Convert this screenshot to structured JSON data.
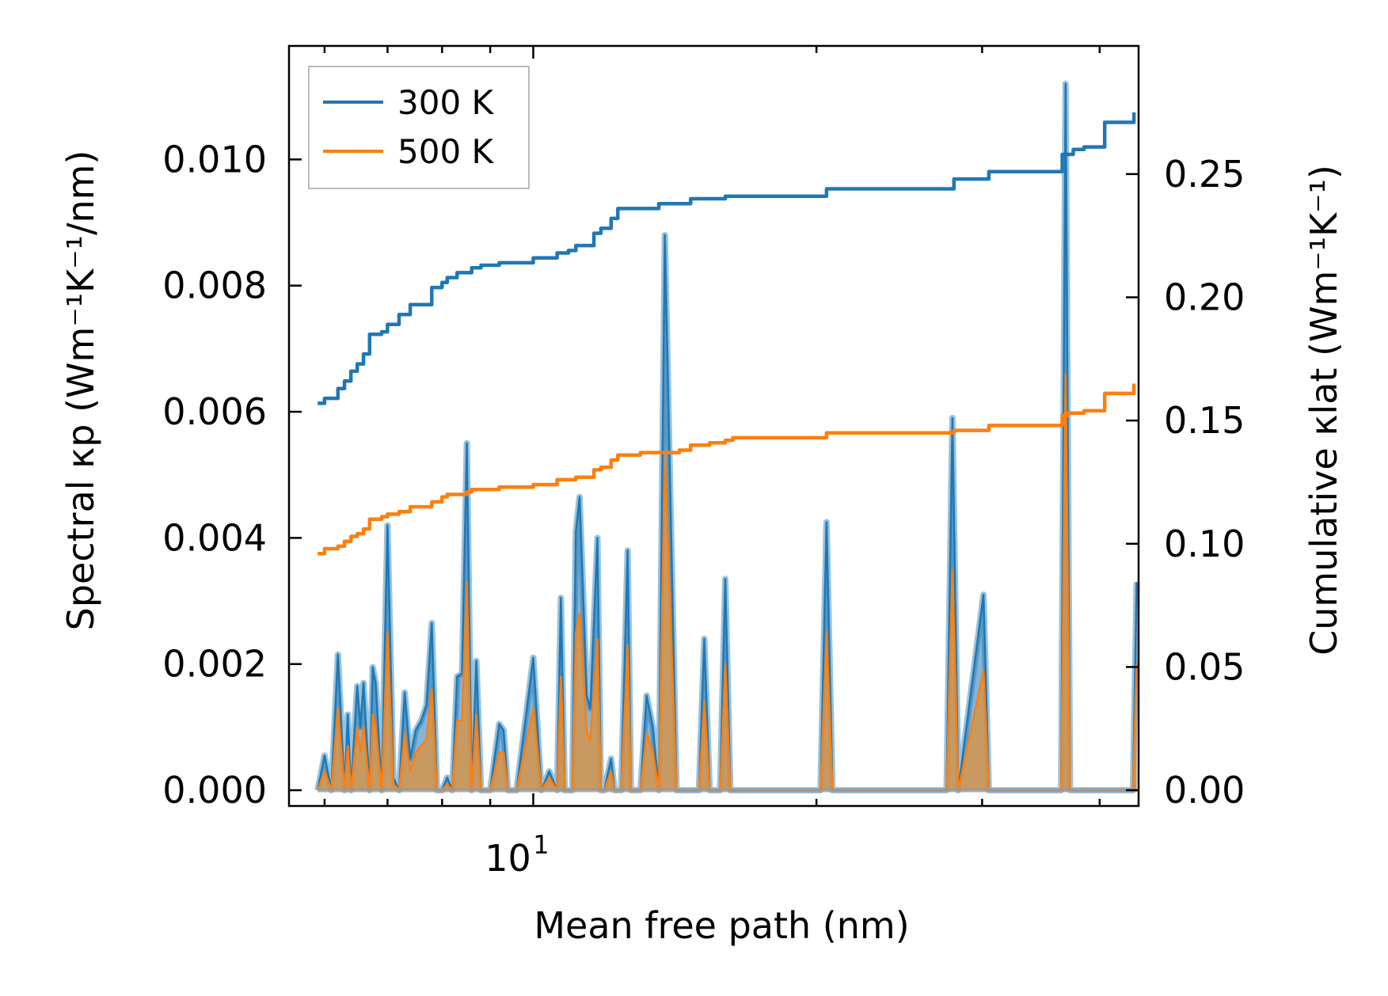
{
  "chart_data": {
    "type": "line",
    "title": "",
    "xlabel": "Mean free path (nm)",
    "ylabel_left": "Spectral κp (Wm⁻¹K⁻¹/nm)",
    "ylabel_right": "Cumulative κlat (Wm⁻¹K⁻¹)",
    "x_scale": "log",
    "xlim": [
      5.5,
      44
    ],
    "x_ticks_major": [
      10
    ],
    "x_tick_labels": [
      "10¹"
    ],
    "x_ticks_minor": [
      6,
      7,
      8,
      9,
      20,
      30,
      40
    ],
    "ylim_left": [
      -0.00025,
      0.0118
    ],
    "yticks_left": [
      0.0,
      0.002,
      0.004,
      0.006,
      0.008,
      0.01
    ],
    "ytick_labels_left": [
      "0.000",
      "0.002",
      "0.004",
      "0.006",
      "0.008",
      "0.010"
    ],
    "ylim_right": [
      -0.0064,
      0.302
    ],
    "yticks_right": [
      0.0,
      0.05,
      0.1,
      0.15,
      0.2,
      0.25
    ],
    "ytick_labels_right": [
      "0.00",
      "0.05",
      "0.10",
      "0.15",
      "0.20",
      "0.25"
    ],
    "legend": {
      "location": "top-left",
      "entries": [
        "300 K",
        "500 K"
      ]
    },
    "colors": {
      "300K": "#1f77b4",
      "500K": "#ff7f0e",
      "fill_300K": "#1f77b4",
      "fill_500K": "#d4954e"
    },
    "series": [
      {
        "name": "300 K",
        "axis": "right",
        "kind": "cumulative",
        "x": [
          5.9,
          6.0,
          6.1,
          6.2,
          6.3,
          6.4,
          6.5,
          6.6,
          6.7,
          6.9,
          7.0,
          7.2,
          7.4,
          7.6,
          7.8,
          8.0,
          8.1,
          8.3,
          8.5,
          8.6,
          8.8,
          9.2,
          9.5,
          10.0,
          10.4,
          10.6,
          10.9,
          11.1,
          11.6,
          11.8,
          12.1,
          12.3,
          12.6,
          13.0,
          13.6,
          14.3,
          14.7,
          15.4,
          16.0,
          16.3,
          20.5,
          21.0,
          28.0,
          28.6,
          30.5,
          31.5,
          36.5,
          37.0,
          37.5,
          38.5,
          40.5,
          41.5,
          43.5
        ],
        "y": [
          0.157,
          0.159,
          0.159,
          0.163,
          0.166,
          0.17,
          0.173,
          0.177,
          0.185,
          0.186,
          0.189,
          0.193,
          0.197,
          0.197,
          0.204,
          0.206,
          0.208,
          0.21,
          0.21,
          0.212,
          0.213,
          0.214,
          0.214,
          0.216,
          0.216,
          0.218,
          0.219,
          0.221,
          0.226,
          0.228,
          0.232,
          0.236,
          0.236,
          0.236,
          0.238,
          0.238,
          0.24,
          0.24,
          0.241,
          0.241,
          0.244,
          0.244,
          0.248,
          0.248,
          0.251,
          0.251,
          0.258,
          0.258,
          0.26,
          0.261,
          0.271,
          0.271,
          0.275
        ]
      },
      {
        "name": "500 K",
        "axis": "right",
        "kind": "cumulative",
        "x": [
          5.9,
          6.0,
          6.1,
          6.2,
          6.3,
          6.4,
          6.5,
          6.6,
          6.7,
          6.9,
          7.0,
          7.2,
          7.4,
          7.6,
          7.8,
          8.0,
          8.1,
          8.3,
          8.5,
          8.6,
          8.8,
          9.2,
          9.5,
          10.0,
          10.4,
          10.6,
          10.9,
          11.1,
          11.6,
          11.8,
          12.1,
          12.3,
          12.6,
          13.0,
          13.6,
          14.3,
          14.7,
          15.4,
          16.0,
          16.3,
          20.5,
          21.0,
          28.0,
          28.6,
          30.5,
          31.5,
          36.5,
          37.0,
          37.5,
          38.5,
          40.5,
          41.5,
          43.5
        ],
        "y": [
          0.096,
          0.098,
          0.098,
          0.099,
          0.101,
          0.103,
          0.104,
          0.106,
          0.11,
          0.111,
          0.112,
          0.113,
          0.115,
          0.115,
          0.117,
          0.119,
          0.12,
          0.12,
          0.121,
          0.122,
          0.122,
          0.123,
          0.123,
          0.124,
          0.124,
          0.126,
          0.126,
          0.127,
          0.13,
          0.131,
          0.134,
          0.136,
          0.136,
          0.137,
          0.137,
          0.138,
          0.14,
          0.141,
          0.142,
          0.143,
          0.145,
          0.145,
          0.146,
          0.146,
          0.148,
          0.148,
          0.152,
          0.153,
          0.153,
          0.154,
          0.161,
          0.161,
          0.165
        ]
      },
      {
        "name": "300 K spectral",
        "axis": "left",
        "kind": "spectral",
        "x": [
          5.9,
          6.0,
          6.1,
          6.2,
          6.3,
          6.35,
          6.4,
          6.5,
          6.55,
          6.6,
          6.7,
          6.75,
          6.8,
          6.9,
          7.0,
          7.1,
          7.2,
          7.3,
          7.4,
          7.5,
          7.6,
          7.7,
          7.8,
          7.9,
          8.0,
          8.1,
          8.2,
          8.3,
          8.4,
          8.5,
          8.6,
          8.7,
          8.8,
          9.0,
          9.2,
          9.3,
          9.4,
          9.6,
          10.0,
          10.2,
          10.4,
          10.6,
          10.7,
          10.8,
          11.0,
          11.1,
          11.2,
          11.4,
          11.5,
          11.7,
          11.8,
          11.9,
          12.1,
          12.2,
          12.4,
          12.6,
          12.7,
          13.0,
          13.2,
          13.4,
          13.6,
          13.8,
          14.2,
          14.4,
          14.6,
          15.0,
          15.2,
          15.4,
          15.8,
          16.0,
          16.2,
          16.4,
          20.2,
          20.5,
          20.8,
          27.5,
          27.9,
          28.3,
          30.1,
          30.5,
          30.9,
          36.0,
          36.4,
          36.8,
          37.2,
          37.6,
          38.0,
          39.8,
          40.2,
          40.6,
          43.0,
          43.4,
          43.8
        ],
        "y": [
          0.0,
          0.00055,
          0.0,
          0.00215,
          0.0,
          0.0012,
          0.0,
          0.00165,
          0.001,
          0.0017,
          0.0,
          0.00195,
          0.0017,
          0.0,
          0.0042,
          0.0002,
          0.0,
          0.00155,
          0.0005,
          0.00095,
          0.0011,
          0.00135,
          0.00265,
          0.0,
          0.0,
          0.0002,
          0.0,
          0.0018,
          0.00185,
          0.0055,
          0.0,
          0.00205,
          0.0,
          0.0,
          0.00105,
          0.00095,
          0.0,
          0.0,
          0.0021,
          0.0,
          0.0003,
          0.0,
          0.00305,
          0.0,
          0.0,
          0.0041,
          0.00465,
          0.0015,
          0.0013,
          0.004,
          0.0,
          0.0,
          0.0005,
          0.0,
          0.0,
          0.0038,
          0.0,
          0.0,
          0.0015,
          0.001,
          0.0,
          0.0088,
          0.0,
          0.0,
          0.0,
          0.0,
          0.0024,
          0.0,
          0.0,
          0.00335,
          0.0,
          0.0,
          0.0,
          0.00425,
          0.0,
          0.0,
          0.0059,
          0.0,
          0.0031,
          0.0,
          0.0,
          0.0,
          0.0,
          0.0112,
          0.0,
          0.0,
          0.0,
          0.0,
          0.0,
          0.0,
          0.0,
          0.0,
          0.0033
        ]
      },
      {
        "name": "500 K spectral",
        "axis": "left",
        "kind": "spectral",
        "x": [
          5.9,
          6.0,
          6.1,
          6.2,
          6.3,
          6.35,
          6.4,
          6.5,
          6.55,
          6.6,
          6.7,
          6.75,
          6.8,
          6.9,
          7.0,
          7.1,
          7.2,
          7.3,
          7.4,
          7.5,
          7.6,
          7.7,
          7.8,
          7.9,
          8.0,
          8.1,
          8.2,
          8.3,
          8.4,
          8.5,
          8.6,
          8.7,
          8.8,
          9.0,
          9.2,
          9.3,
          9.4,
          9.6,
          10.0,
          10.2,
          10.4,
          10.6,
          10.7,
          10.8,
          11.0,
          11.1,
          11.2,
          11.4,
          11.5,
          11.7,
          11.8,
          11.9,
          12.1,
          12.2,
          12.4,
          12.6,
          12.7,
          13.0,
          13.2,
          13.4,
          13.6,
          13.8,
          14.2,
          14.4,
          14.6,
          15.0,
          15.2,
          15.4,
          15.8,
          16.0,
          16.2,
          16.4,
          20.2,
          20.5,
          20.8,
          27.5,
          27.9,
          28.3,
          30.1,
          30.5,
          30.9,
          36.0,
          36.4,
          36.8,
          37.2,
          37.6,
          38.0,
          39.8,
          40.2,
          40.6,
          43.0,
          43.4,
          43.8
        ],
        "y": [
          0.0,
          0.0003,
          0.0,
          0.0013,
          0.0,
          0.0007,
          0.0,
          0.001,
          0.0006,
          0.001,
          0.0,
          0.0012,
          0.001,
          0.0,
          0.0025,
          0.0001,
          0.0,
          0.0009,
          0.0003,
          0.0006,
          0.0007,
          0.0008,
          0.0016,
          0.0,
          0.0,
          0.0001,
          0.0,
          0.0011,
          0.0011,
          0.0033,
          0.0,
          0.0012,
          0.0,
          0.0,
          0.0006,
          0.0006,
          0.0,
          0.0,
          0.0013,
          0.0,
          0.0002,
          0.0,
          0.0018,
          0.0,
          0.0,
          0.0025,
          0.0028,
          0.0009,
          0.0008,
          0.0024,
          0.0,
          0.0,
          0.0003,
          0.0,
          0.0,
          0.0023,
          0.0,
          0.0,
          0.0009,
          0.0006,
          0.0,
          0.0053,
          0.0,
          0.0,
          0.0,
          0.0,
          0.0014,
          0.0,
          0.0,
          0.002,
          0.0,
          0.0,
          0.0,
          0.0025,
          0.0,
          0.0,
          0.0035,
          0.0,
          0.0019,
          0.0,
          0.0,
          0.0,
          0.0,
          0.0066,
          0.0,
          0.0,
          0.0,
          0.0,
          0.0,
          0.0,
          0.0,
          0.0,
          0.002
        ]
      }
    ]
  }
}
